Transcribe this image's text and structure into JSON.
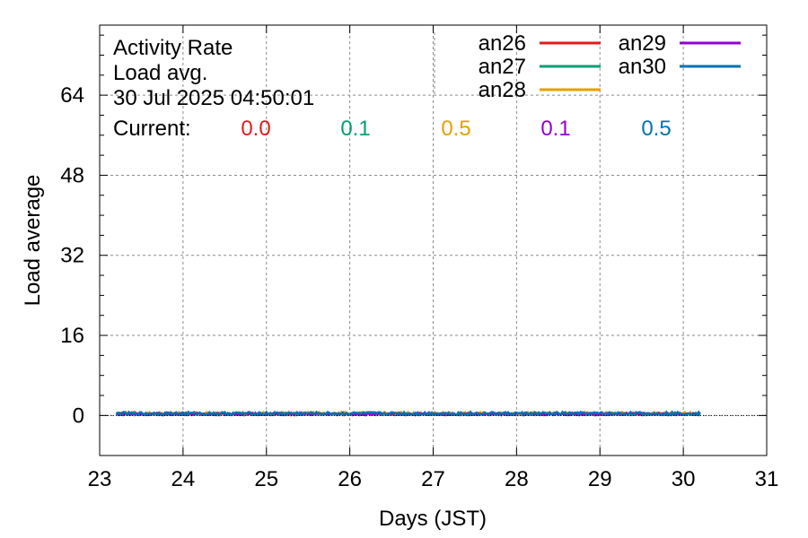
{
  "chart_data": {
    "type": "line",
    "title_lines": [
      "Activity Rate",
      "Load avg.",
      "30 Jul 2025 04:50:01"
    ],
    "current_label": "Current:",
    "xlabel": "Days (JST)",
    "ylabel": "Load average",
    "xlim": [
      23,
      31
    ],
    "ylim": [
      -8,
      78
    ],
    "xticks": [
      23,
      24,
      25,
      26,
      27,
      28,
      29,
      30,
      31
    ],
    "yticks": [
      0,
      16,
      32,
      48,
      64
    ],
    "grid": true,
    "legend_position": "top-right",
    "data_x_range": [
      23.2,
      30.2
    ],
    "series": [
      {
        "name": "an26",
        "color": "#e41a1c",
        "current": "0.0",
        "level": 0.2
      },
      {
        "name": "an27",
        "color": "#009e73",
        "current": "0.1",
        "level": 0.3
      },
      {
        "name": "an28",
        "color": "#e69f00",
        "current": "0.5",
        "level": 0.4
      },
      {
        "name": "an29",
        "color": "#9400d3",
        "current": "0.1",
        "level": 0.3
      },
      {
        "name": "an30",
        "color": "#0072b2",
        "current": "0.5",
        "level": 0.4
      }
    ]
  }
}
